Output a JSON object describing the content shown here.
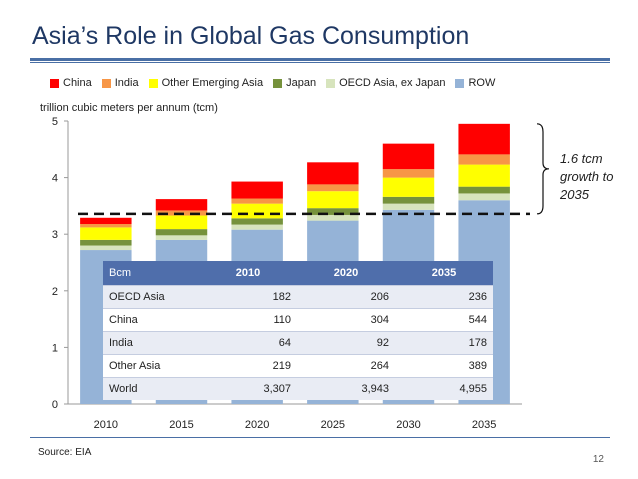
{
  "title": "Asia’s Role in Global Gas Consumption",
  "unit_label": "trillion cubic meters  per annum (tcm)",
  "annotation": "1.6 tcm growth to 2035",
  "source": "Source: EIA",
  "page_number": "12",
  "colors": {
    "title": "#1f3864",
    "rule": "#4a6fa5",
    "table_header": "#4f6eab"
  },
  "chart_data": {
    "type": "bar",
    "stacked": true,
    "categories": [
      "2010",
      "2015",
      "2020",
      "2025",
      "2030",
      "2035"
    ],
    "ylim": [
      0,
      5
    ],
    "yticks": [
      "0",
      "1",
      "2",
      "3",
      "4",
      "5"
    ],
    "ylabel": "trillion cubic meters  per annum (tcm)",
    "grid": false,
    "legend_position": "top",
    "series": [
      {
        "name": "ROW",
        "color": "#95b3d7",
        "values": [
          2.72,
          2.9,
          3.08,
          3.24,
          3.43,
          3.6
        ]
      },
      {
        "name": "OECD Asia, ex Japan",
        "color": "#d7e4bd",
        "values": [
          0.08,
          0.08,
          0.09,
          0.1,
          0.11,
          0.12
        ]
      },
      {
        "name": "Japan",
        "color": "#76923c",
        "values": [
          0.1,
          0.11,
          0.11,
          0.12,
          0.12,
          0.12
        ]
      },
      {
        "name": "Other Emerging Asia",
        "color": "#ffff00",
        "values": [
          0.22,
          0.24,
          0.26,
          0.3,
          0.34,
          0.39
        ]
      },
      {
        "name": "India",
        "color": "#f79646",
        "values": [
          0.06,
          0.09,
          0.09,
          0.12,
          0.15,
          0.18
        ]
      },
      {
        "name": "China",
        "color": "#ff0000",
        "values": [
          0.11,
          0.2,
          0.3,
          0.39,
          0.45,
          0.54
        ]
      }
    ],
    "reference_line": {
      "value": 3.36,
      "style": "dashed"
    }
  },
  "legend": [
    {
      "name": "China",
      "color": "#ff0000"
    },
    {
      "name": "India",
      "color": "#f79646"
    },
    {
      "name": "Other Emerging Asia",
      "color": "#ffff00"
    },
    {
      "name": "Japan",
      "color": "#76923c"
    },
    {
      "name": "OECD Asia, ex Japan",
      "color": "#d7e4bd"
    },
    {
      "name": "ROW",
      "color": "#95b3d7"
    }
  ],
  "table": {
    "headers": [
      "Bcm",
      "2010",
      "2020",
      "2035"
    ],
    "rows": [
      [
        "OECD Asia",
        "182",
        "206",
        "236"
      ],
      [
        "China",
        "110",
        "304",
        "544"
      ],
      [
        "India",
        "64",
        "92",
        "178"
      ],
      [
        "Other Asia",
        "219",
        "264",
        "389"
      ],
      [
        "World",
        "3,307",
        "3,943",
        "4,955"
      ]
    ]
  }
}
